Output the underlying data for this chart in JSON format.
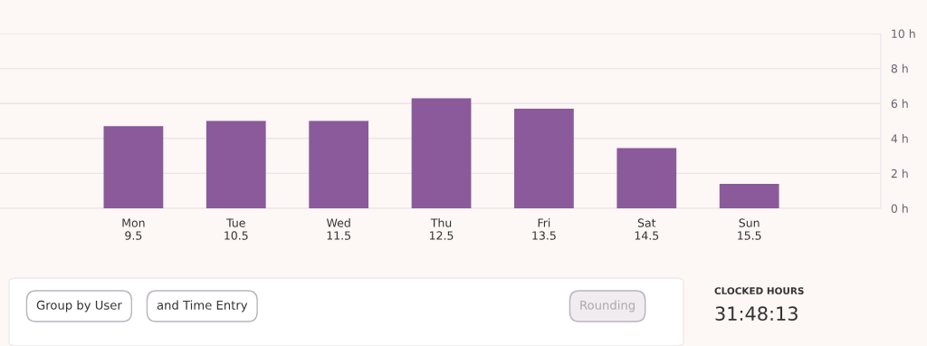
{
  "chart_data": {
    "type": "bar",
    "categories": [
      "Mon\n9.5",
      "Tue\n10.5",
      "Wed\n11.5",
      "Thu\n12.5",
      "Fri\n13.5",
      "Sat\n14.5",
      "Sun\n15.5"
    ],
    "values": [
      4.7,
      5.0,
      5.0,
      6.3,
      5.7,
      3.45,
      1.4
    ],
    "color": "#8a5a9a",
    "ylim": [
      0,
      10
    ],
    "yticks": [
      {
        "value": 0,
        "label": "0 h"
      },
      {
        "value": 2,
        "label": "2 h"
      },
      {
        "value": 4,
        "label": "4 h"
      },
      {
        "value": 6,
        "label": "6 h"
      },
      {
        "value": 8,
        "label": "8 h"
      },
      {
        "value": 10,
        "label": "10 h"
      }
    ],
    "grid": "y",
    "annotations": [
      "Group by User",
      "and Time Entry",
      "Rounding",
      "CLOCKED HOURS",
      "31:48:13"
    ]
  }
}
